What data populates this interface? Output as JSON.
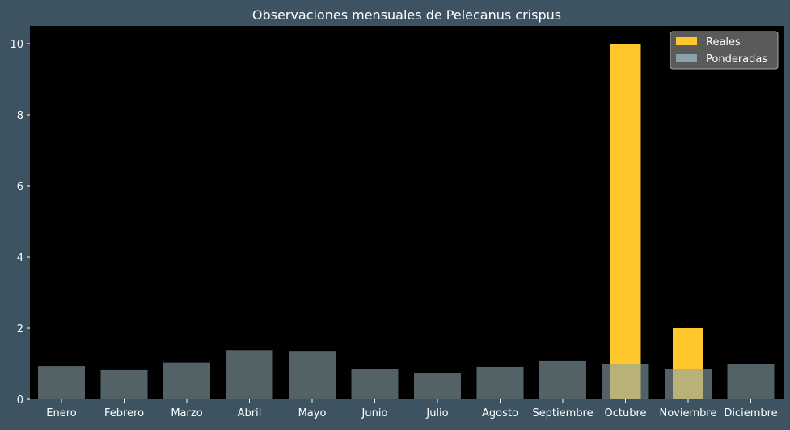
{
  "colors": {
    "page_background": "#3d5361",
    "plot_background": "#000000",
    "reales": "#ffc72c",
    "ponderadas": "#8aa3ab",
    "text": "#ffffff"
  },
  "chart_data": {
    "type": "bar",
    "title": "Observaciones mensuales de Pelecanus crispus",
    "xlabel": "",
    "ylabel": "",
    "categories": [
      "Enero",
      "Febrero",
      "Marzo",
      "Abril",
      "Mayo",
      "Junio",
      "Julio",
      "Agosto",
      "Septiembre",
      "Octubre",
      "Noviembre",
      "Diciembre"
    ],
    "series": [
      {
        "name": "Reales",
        "values": [
          0,
          0,
          0,
          0,
          0,
          0,
          0,
          0,
          0,
          10,
          2,
          0
        ]
      },
      {
        "name": "Ponderadas",
        "values": [
          0.93,
          0.82,
          1.03,
          1.38,
          1.36,
          0.86,
          0.73,
          0.91,
          1.07,
          1.0,
          0.86,
          1.0
        ]
      }
    ],
    "ylim": [
      0,
      10.5
    ],
    "yticks": [
      0,
      2,
      4,
      6,
      8,
      10
    ],
    "grid": false,
    "legend_position": "top-right"
  }
}
